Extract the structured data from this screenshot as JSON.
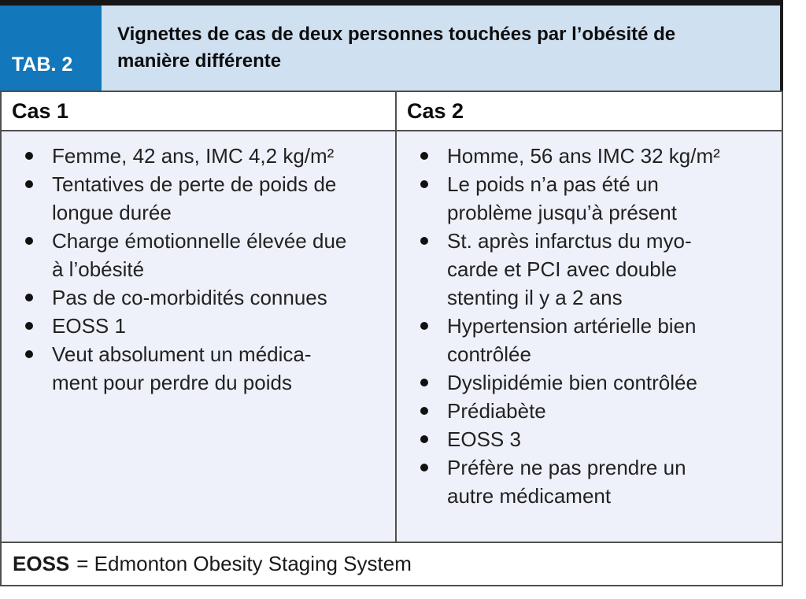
{
  "table": {
    "tab_label": "TAB. 2",
    "title": "Vignettes de cas de deux personnes touchées par l’obésité de\nmanière différente",
    "cases": [
      {
        "header": "Cas 1",
        "bullets": [
          "Femme, 42 ans, IMC 4,2 kg/m²",
          "Tentatives de perte de poids de\nlongue durée",
          "Charge émotionnelle élevée due\nà l’obésité",
          "Pas de co-morbidités connues",
          "EOSS 1",
          "Veut absolument un médica-\nment pour perdre du poids"
        ]
      },
      {
        "header": "Cas 2",
        "bullets": [
          "Homme, 56 ans IMC 32 kg/m²",
          "Le poids n’a pas été un\nproblème jusqu’à présent",
          "St. après infarctus du myo-\ncarde et PCI avec double\nstenting il y a 2 ans",
          "Hypertension artérielle bien\ncontrôlée",
          "Dyslipidémie bien contrôlée",
          "Prédiabète",
          "EOSS 3",
          "Préfère ne pas prendre un\nautre médicament"
        ]
      }
    ],
    "footnote": {
      "abbr": "EOSS",
      "definition": "= Edmonton Obesity Staging System"
    }
  },
  "colors": {
    "accent_blue": "#1377BB",
    "title_band_bg": "#CFE0F1",
    "body_bg": "#EEF1F9",
    "top_bar": "#161616",
    "grid_border": "#4f4f4f"
  }
}
